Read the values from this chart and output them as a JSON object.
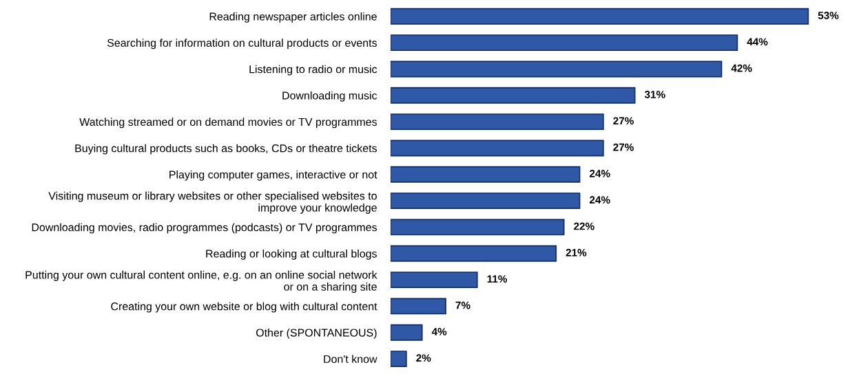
{
  "chart_data": {
    "type": "bar",
    "orientation": "horizontal",
    "categories": [
      "Reading newspaper articles online",
      "Searching for information on cultural products or events",
      "Listening to radio or music",
      "Downloading music",
      "Watching streamed or on demand movies or TV programmes",
      "Buying cultural products such as books, CDs or theatre tickets",
      "Playing computer games, interactive or not",
      "Visiting museum or library websites or other specialised websites to\nimprove your knowledge",
      "Downloading movies, radio programmes (podcasts) or TV programmes",
      "Reading or looking at cultural blogs",
      "Putting your own cultural content online, e.g. on an online social network\nor on a sharing site",
      "Creating your own website or blog with cultural content",
      "Other (SPONTANEOUS)",
      "Don't know"
    ],
    "values": [
      53,
      44,
      42,
      31,
      27,
      27,
      24,
      24,
      22,
      21,
      11,
      7,
      4,
      2
    ],
    "value_labels": [
      "53%",
      "44%",
      "42%",
      "31%",
      "27%",
      "27%",
      "24%",
      "24%",
      "22%",
      "21%",
      "11%",
      "7%",
      "4%",
      "2%"
    ],
    "color": "#2f58a6",
    "tick_labels": "y",
    "grid": false,
    "legend": false
  }
}
